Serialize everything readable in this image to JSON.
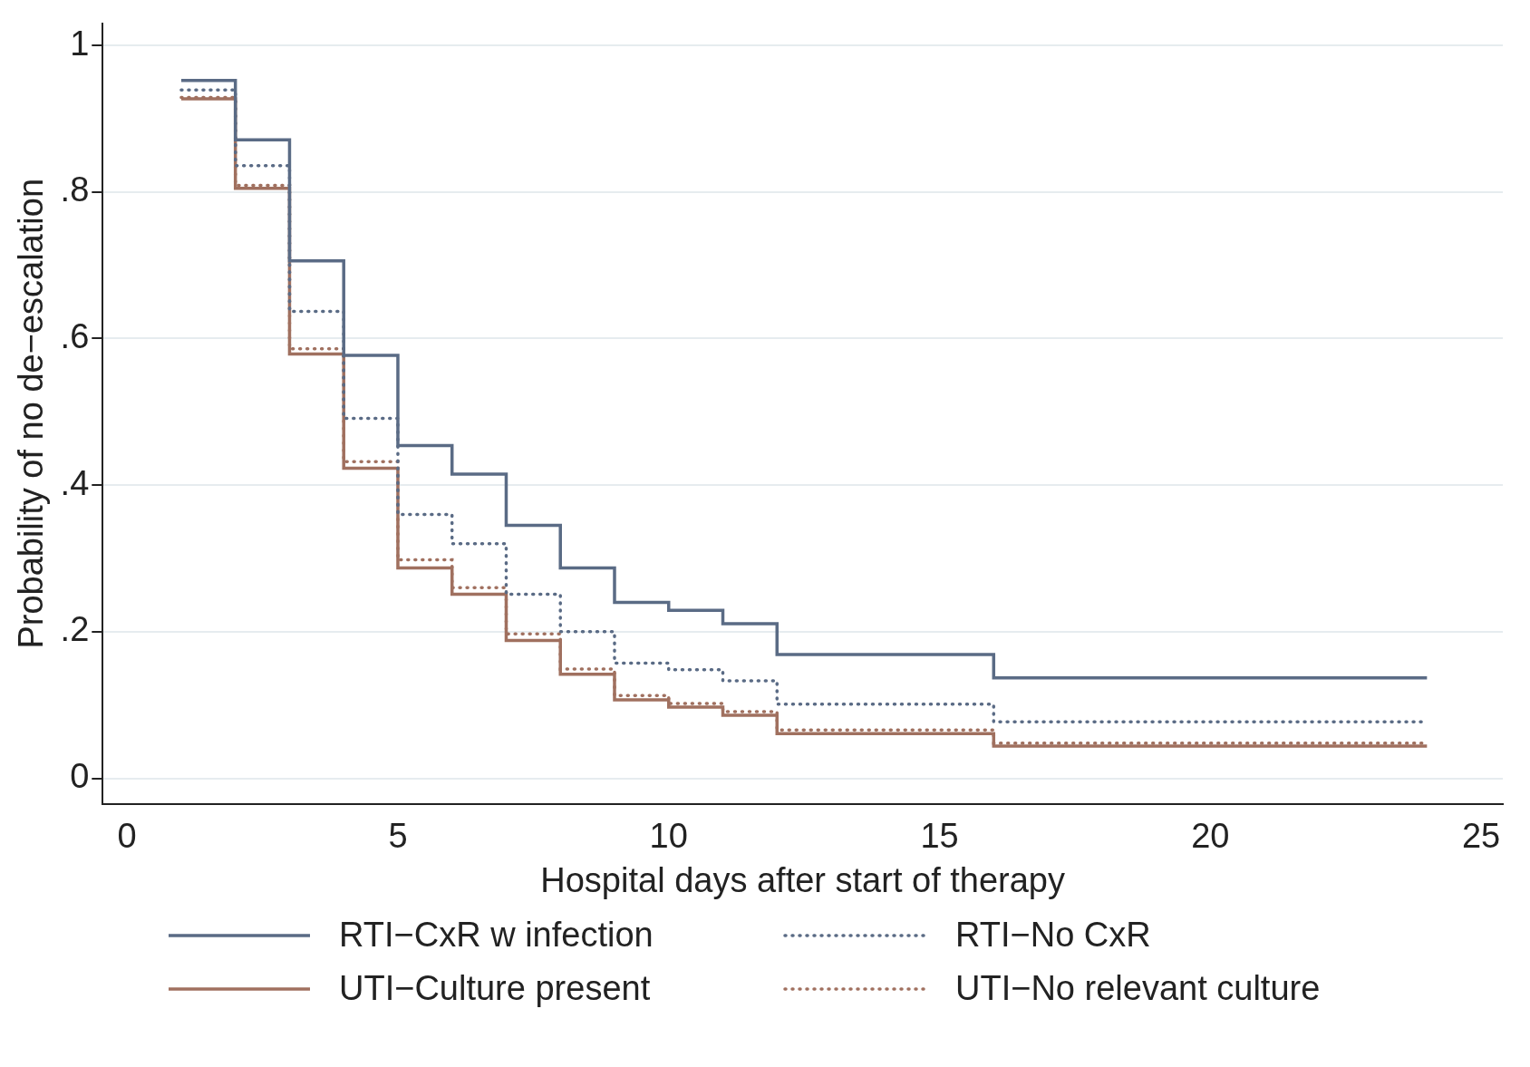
{
  "chart_data": {
    "type": "step",
    "xlabel": "Hospital days after start of therapy",
    "ylabel": "Probability of no de−escalation",
    "x": [
      1,
      2,
      3,
      4,
      5,
      6,
      7,
      8,
      9,
      10,
      11,
      12,
      16,
      24
    ],
    "xlim": [
      -0.45,
      25.4
    ],
    "xticks": [
      0,
      5,
      10,
      15,
      20,
      25
    ],
    "ylim": [
      -0.035,
      1.03
    ],
    "yticks": [
      {
        "value": 0,
        "label": "0"
      },
      {
        "value": 0.2,
        "label": ".2"
      },
      {
        "value": 0.4,
        "label": ".4"
      },
      {
        "value": 0.6,
        "label": ".6"
      },
      {
        "value": 0.8,
        "label": ".8"
      },
      {
        "value": 1,
        "label": "1"
      }
    ],
    "grid": "y",
    "legend": "bottom",
    "series": [
      {
        "name": "RTI−CxR w infection",
        "color": "#5a6b85",
        "line_style": "solid",
        "values": [
          0.952,
          0.871,
          0.706,
          0.577,
          0.454,
          0.415,
          0.345,
          0.287,
          0.24,
          0.229,
          0.211,
          0.169,
          0.137,
          0.137
        ]
      },
      {
        "name": "RTI−No CxR",
        "color": "#5a6b85",
        "line_style": "dotted",
        "values": [
          0.939,
          0.836,
          0.637,
          0.491,
          0.36,
          0.32,
          0.251,
          0.2,
          0.157,
          0.148,
          0.133,
          0.101,
          0.077,
          0.077
        ]
      },
      {
        "name": "UTI−Culture present",
        "color": "#a0705f",
        "line_style": "solid",
        "values": [
          0.927,
          0.805,
          0.579,
          0.423,
          0.287,
          0.251,
          0.188,
          0.142,
          0.107,
          0.097,
          0.086,
          0.061,
          0.044,
          0.044
        ]
      },
      {
        "name": "UTI−No relevant culture",
        "color": "#a0705f",
        "line_style": "dotted",
        "values": [
          0.929,
          0.809,
          0.586,
          0.432,
          0.298,
          0.26,
          0.197,
          0.149,
          0.113,
          0.102,
          0.091,
          0.066,
          0.048,
          0.048
        ]
      }
    ]
  }
}
